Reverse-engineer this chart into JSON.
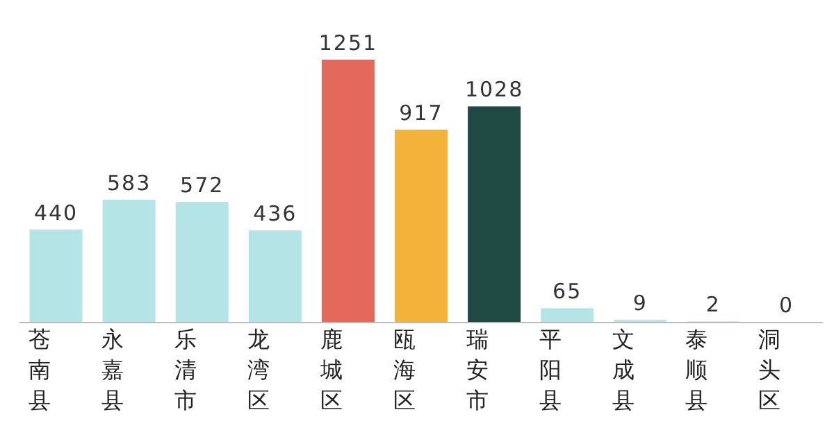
{
  "chart_data": {
    "type": "bar",
    "categories": [
      "苍南县",
      "永嘉县",
      "乐清市",
      "龙湾区",
      "鹿城区",
      "瓯海区",
      "瑞安市",
      "平阳县",
      "文成县",
      "泰顺县",
      "洞头区"
    ],
    "values": [
      440,
      583,
      572,
      436,
      1251,
      917,
      1028,
      65,
      9,
      2,
      0
    ],
    "colors": [
      "#b4e4e6",
      "#b4e4e6",
      "#b4e4e6",
      "#b4e4e6",
      "#e4695a",
      "#f3b23a",
      "#1f4a44",
      "#b4e4e6",
      "#b4e4e6",
      "#b4e4e6",
      "#b4e4e6"
    ],
    "data_labels": true
  }
}
